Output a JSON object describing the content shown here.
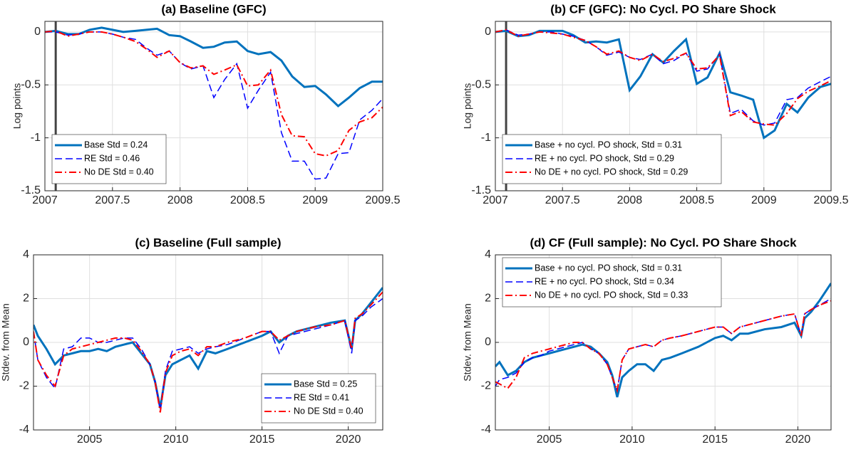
{
  "chart_data": [
    {
      "type": "line",
      "title": "(a) Baseline (GFC)",
      "ylabel": "Log points",
      "legend": "lower left",
      "grid": true,
      "xlim": [
        2007,
        2009.5
      ],
      "ylim": [
        -1.5,
        0.1
      ],
      "xticks": [
        2007,
        2007.5,
        2008,
        2008.5,
        2009,
        2009.5
      ],
      "yticks": [
        0,
        -0.5,
        -1,
        -1.5
      ],
      "vline": 2007.08,
      "x": [
        2007,
        2007.08,
        2007.17,
        2007.25,
        2007.33,
        2007.42,
        2007.5,
        2007.58,
        2007.67,
        2007.75,
        2007.83,
        2007.92,
        2008,
        2008.08,
        2008.17,
        2008.25,
        2008.33,
        2008.42,
        2008.5,
        2008.58,
        2008.67,
        2008.75,
        2008.83,
        2008.92,
        2009,
        2009.08,
        2009.17,
        2009.25,
        2009.33,
        2009.42,
        2009.5
      ],
      "series": [
        {
          "name": "Base Std = 0.24",
          "color": "#0072bd",
          "dash": "solid",
          "values": [
            0,
            0.01,
            -0.02,
            -0.02,
            0.02,
            0.04,
            0.02,
            0,
            0.01,
            0.02,
            0.03,
            -0.03,
            -0.04,
            -0.09,
            -0.15,
            -0.14,
            -0.1,
            -0.09,
            -0.18,
            -0.21,
            -0.19,
            -0.27,
            -0.42,
            -0.52,
            -0.51,
            -0.59,
            -0.7,
            -0.62,
            -0.53,
            -0.47,
            -0.47
          ]
        },
        {
          "name": "RE Std = 0.46",
          "color": "#0000ff",
          "dash": "dashed",
          "values": [
            0,
            0,
            -0.03,
            -0.02,
            0,
            0,
            -0.02,
            -0.05,
            -0.07,
            -0.15,
            -0.22,
            -0.18,
            -0.29,
            -0.35,
            -0.32,
            -0.62,
            -0.45,
            -0.3,
            -0.72,
            -0.55,
            -0.38,
            -0.95,
            -1.22,
            -1.22,
            -1.39,
            -1.38,
            -1.15,
            -1.14,
            -0.83,
            -0.74,
            -0.63
          ]
        },
        {
          "name": "No DE Std = 0.40",
          "color": "#ff0000",
          "dash": "dashdot",
          "values": [
            0,
            0.01,
            -0.04,
            -0.02,
            0,
            0,
            -0.02,
            -0.05,
            -0.09,
            -0.16,
            -0.24,
            -0.18,
            -0.29,
            -0.34,
            -0.32,
            -0.4,
            -0.36,
            -0.31,
            -0.51,
            -0.5,
            -0.36,
            -0.78,
            -0.98,
            -0.99,
            -1.15,
            -1.17,
            -1.12,
            -0.93,
            -0.85,
            -0.81,
            -0.71
          ]
        }
      ]
    },
    {
      "type": "line",
      "title": "(b) CF (GFC): No Cycl. PO Share Shock",
      "ylabel": "Log points",
      "legend": "lower left",
      "grid": true,
      "xlim": [
        2007,
        2009.5
      ],
      "ylim": [
        -1.5,
        0.1
      ],
      "xticks": [
        2007,
        2007.5,
        2008,
        2008.5,
        2009,
        2009.5
      ],
      "yticks": [
        0,
        -0.5,
        -1,
        -1.5
      ],
      "vline": 2007.08,
      "x": [
        2007,
        2007.08,
        2007.17,
        2007.25,
        2007.33,
        2007.42,
        2007.5,
        2007.58,
        2007.67,
        2007.75,
        2007.83,
        2007.92,
        2008,
        2008.08,
        2008.17,
        2008.25,
        2008.33,
        2008.42,
        2008.5,
        2008.58,
        2008.67,
        2008.75,
        2008.83,
        2008.92,
        2009,
        2009.08,
        2009.17,
        2009.25,
        2009.33,
        2009.42,
        2009.5
      ],
      "series": [
        {
          "name": "Base + no cycl. PO shock, Std = 0.31",
          "color": "#0072bd",
          "dash": "solid",
          "values": [
            0,
            0.01,
            -0.04,
            -0.03,
            0.01,
            0.01,
            0.01,
            -0.03,
            -0.1,
            -0.09,
            -0.1,
            -0.07,
            -0.55,
            -0.42,
            -0.21,
            -0.29,
            -0.18,
            -0.07,
            -0.49,
            -0.43,
            -0.2,
            -0.57,
            -0.6,
            -0.64,
            -1.0,
            -0.93,
            -0.68,
            -0.76,
            -0.62,
            -0.52,
            -0.49
          ]
        },
        {
          "name": "RE + no cycl. PO shock, Std = 0.29",
          "color": "#0000ff",
          "dash": "dashed",
          "values": [
            0,
            0.02,
            -0.03,
            -0.02,
            0,
            0,
            -0.02,
            -0.04,
            -0.08,
            -0.14,
            -0.22,
            -0.19,
            -0.24,
            -0.26,
            -0.21,
            -0.3,
            -0.27,
            -0.2,
            -0.37,
            -0.35,
            -0.21,
            -0.77,
            -0.73,
            -0.84,
            -0.88,
            -0.86,
            -0.64,
            -0.62,
            -0.53,
            -0.47,
            -0.42
          ]
        },
        {
          "name": "No DE + no cycl. PO shock, Std = 0.29",
          "color": "#ff0000",
          "dash": "dashdot",
          "values": [
            0,
            0.02,
            -0.04,
            -0.02,
            0,
            -0.01,
            -0.02,
            -0.05,
            -0.08,
            -0.14,
            -0.21,
            -0.18,
            -0.24,
            -0.27,
            -0.21,
            -0.28,
            -0.25,
            -0.2,
            -0.35,
            -0.34,
            -0.22,
            -0.79,
            -0.75,
            -0.85,
            -0.87,
            -0.88,
            -0.77,
            -0.63,
            -0.56,
            -0.51,
            -0.46
          ]
        }
      ]
    },
    {
      "type": "line",
      "title": "(c) Baseline (Full sample)",
      "ylabel": "Stdev. from Mean",
      "legend": "lower right",
      "grid": true,
      "xlim": [
        2001.75,
        2022
      ],
      "ylim": [
        -4,
        4
      ],
      "xticks": [
        2005,
        2010,
        2015,
        2020
      ],
      "yticks": [
        -4,
        -2,
        0,
        2,
        4
      ],
      "x": [
        2001.75,
        2002,
        2002.5,
        2003,
        2003.5,
        2004,
        2004.5,
        2005,
        2005.5,
        2006,
        2006.5,
        2007,
        2007.5,
        2008,
        2008.5,
        2008.8,
        2009.1,
        2009.4,
        2009.8,
        2010.3,
        2010.8,
        2011.3,
        2011.8,
        2012.3,
        2013,
        2014,
        2015,
        2015.5,
        2016,
        2016.5,
        2017,
        2018,
        2019,
        2019.8,
        2020.2,
        2020.4,
        2020.8,
        2021.3,
        2022
      ],
      "series": [
        {
          "name": "Base Std = 0.25",
          "color": "#0072bd",
          "dash": "solid",
          "values": [
            0.8,
            0.3,
            -0.3,
            -1.0,
            -0.6,
            -0.5,
            -0.4,
            -0.4,
            -0.3,
            -0.4,
            -0.2,
            -0.1,
            0.0,
            -0.5,
            -1.0,
            -1.8,
            -3.0,
            -1.5,
            -1.0,
            -0.8,
            -0.6,
            -1.2,
            -0.4,
            -0.5,
            -0.3,
            0.0,
            0.3,
            0.5,
            0.0,
            0.3,
            0.5,
            0.7,
            0.9,
            1.0,
            -0.3,
            1.0,
            1.3,
            1.8,
            2.5
          ]
        },
        {
          "name": "RE Std = 0.41",
          "color": "#0000ff",
          "dash": "dashed",
          "values": [
            0.5,
            -0.8,
            -1.6,
            -2.1,
            -0.3,
            -0.2,
            0.2,
            0.2,
            0.0,
            0.0,
            0.1,
            0.2,
            0.2,
            -0.3,
            -1.0,
            -1.8,
            -3.1,
            -1.3,
            -0.4,
            -0.3,
            -0.2,
            -0.5,
            -0.3,
            -0.2,
            -0.1,
            0.2,
            0.5,
            0.5,
            -0.5,
            0.3,
            0.4,
            0.6,
            0.8,
            1.0,
            -0.5,
            1.0,
            1.2,
            1.6,
            2.0
          ]
        },
        {
          "name": "No DE Std = 0.40",
          "color": "#ff0000",
          "dash": "dashdot",
          "values": [
            0.5,
            -0.8,
            -1.5,
            -2.0,
            -0.6,
            -0.3,
            -0.2,
            -0.1,
            0.0,
            0.1,
            0.2,
            0.2,
            0.1,
            -0.4,
            -1.0,
            -1.8,
            -3.2,
            -1.4,
            -0.6,
            -0.4,
            -0.3,
            -0.6,
            -0.2,
            -0.2,
            0.0,
            0.2,
            0.5,
            0.5,
            0.1,
            0.3,
            0.5,
            0.7,
            0.8,
            1.0,
            -0.3,
            1.1,
            1.3,
            1.7,
            2.3
          ]
        }
      ]
    },
    {
      "type": "line",
      "title": "(d) CF (Full sample): No Cycl. PO Share Shock",
      "ylabel": "Stdev. from Mean",
      "legend": "upper left",
      "grid": true,
      "xlim": [
        2001.75,
        2022
      ],
      "ylim": [
        -4,
        4
      ],
      "xticks": [
        2005,
        2010,
        2015,
        2020
      ],
      "yticks": [
        -4,
        -2,
        0,
        2,
        4
      ],
      "x": [
        2001.75,
        2002,
        2002.5,
        2003,
        2003.5,
        2004,
        2004.5,
        2005,
        2005.5,
        2006,
        2006.5,
        2007,
        2007.5,
        2008,
        2008.5,
        2008.8,
        2009.1,
        2009.4,
        2009.8,
        2010.3,
        2010.8,
        2011.3,
        2011.8,
        2012.3,
        2013,
        2014,
        2015,
        2015.5,
        2016,
        2016.5,
        2017,
        2018,
        2019,
        2019.8,
        2020.2,
        2020.4,
        2020.8,
        2021.3,
        2022
      ],
      "series": [
        {
          "name": "Base + no cycl. PO shock, Std = 0.31",
          "color": "#0072bd",
          "dash": "solid",
          "values": [
            -1.1,
            -0.9,
            -1.5,
            -1.3,
            -0.9,
            -0.7,
            -0.6,
            -0.5,
            -0.4,
            -0.3,
            -0.2,
            -0.1,
            -0.2,
            -0.5,
            -0.9,
            -1.5,
            -2.5,
            -1.6,
            -1.3,
            -1.0,
            -1.0,
            -1.3,
            -0.8,
            -0.7,
            -0.5,
            -0.2,
            0.2,
            0.3,
            0.1,
            0.4,
            0.4,
            0.6,
            0.7,
            0.9,
            0.3,
            1.1,
            1.4,
            1.9,
            2.7
          ]
        },
        {
          "name": "RE + no cycl. PO shock, Std = 0.34",
          "color": "#0000ff",
          "dash": "dashed",
          "values": [
            -2.0,
            -1.7,
            -1.6,
            -1.4,
            -0.9,
            -0.7,
            -0.6,
            -0.4,
            -0.3,
            -0.2,
            -0.1,
            0.0,
            -0.3,
            -0.5,
            -1.0,
            -1.6,
            -2.2,
            -0.8,
            -0.3,
            -0.2,
            -0.1,
            -0.2,
            0.1,
            0.2,
            0.3,
            0.5,
            0.7,
            0.7,
            0.4,
            0.7,
            0.8,
            1.0,
            1.2,
            1.3,
            0.3,
            1.3,
            1.5,
            1.7,
            2.0
          ]
        },
        {
          "name": "No DE + no cycl. PO shock, Std = 0.33",
          "color": "#ff0000",
          "dash": "dashdot",
          "values": [
            -1.8,
            -1.9,
            -2.1,
            -1.6,
            -0.7,
            -0.5,
            -0.4,
            -0.3,
            -0.2,
            -0.1,
            0.0,
            0.0,
            -0.3,
            -0.5,
            -1.0,
            -1.6,
            -2.2,
            -0.8,
            -0.3,
            -0.2,
            -0.1,
            -0.2,
            0.1,
            0.2,
            0.3,
            0.5,
            0.7,
            0.7,
            0.4,
            0.7,
            0.8,
            1.0,
            1.2,
            1.3,
            0.3,
            1.3,
            1.5,
            1.7,
            1.9
          ]
        }
      ]
    }
  ]
}
